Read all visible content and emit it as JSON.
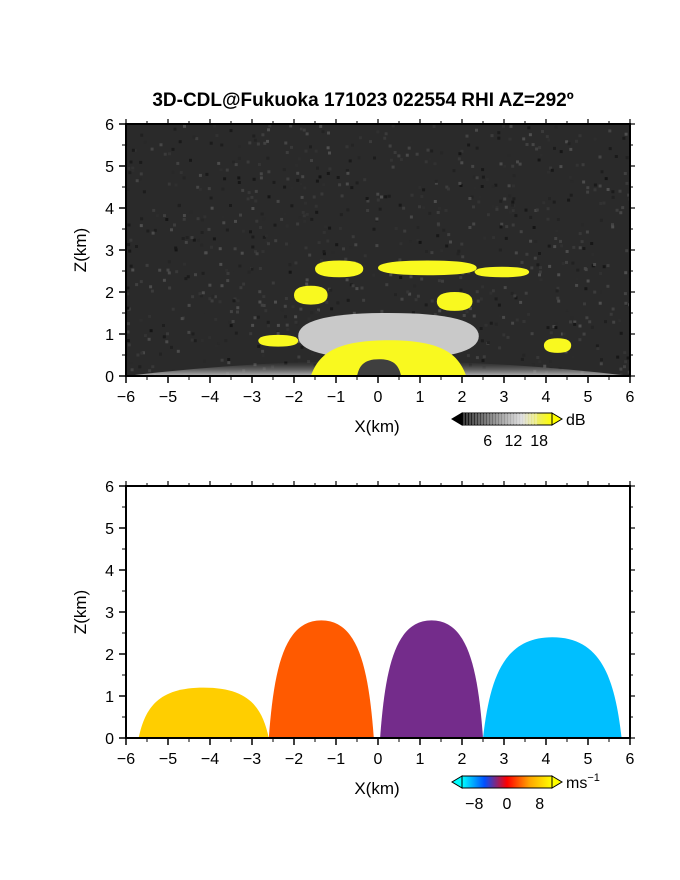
{
  "chart_data": [
    {
      "type": "heatmap",
      "title": "3D-CDL@Fukuoka 171023 022554 RHI AZ=292º",
      "xlabel": "X(km)",
      "ylabel": "Z(km)",
      "xlim": [
        -6,
        6
      ],
      "ylim": [
        0,
        6
      ],
      "xticks": [
        -6,
        -5,
        -4,
        -3,
        -2,
        -1,
        0,
        1,
        2,
        3,
        4,
        5,
        6
      ],
      "yticks": [
        0,
        1,
        2,
        3,
        4,
        5,
        6
      ],
      "grid": false,
      "colorbar": {
        "unit": "dB",
        "ticks": [
          6,
          12,
          18
        ],
        "range": [
          0,
          21
        ],
        "colors": [
          "#000000",
          "#6e6e6e",
          "#d8d8d8",
          "#ffff00"
        ]
      },
      "regions": [
        {
          "x": [
            -0.5,
            0.55
          ],
          "z": [
            0.0,
            0.4
          ],
          "value": 4
        },
        {
          "x": [
            -1.6,
            2.1
          ],
          "z": [
            0.0,
            0.85
          ],
          "value": 20
        },
        {
          "x": [
            -2.85,
            -1.9
          ],
          "z": [
            0.7,
            0.98
          ],
          "value": 20
        },
        {
          "x": [
            -1.5,
            -0.35
          ],
          "z": [
            2.35,
            2.75
          ],
          "value": 20
        },
        {
          "x": [
            0.0,
            2.35
          ],
          "z": [
            2.4,
            2.75
          ],
          "value": 20
        },
        {
          "x": [
            2.3,
            3.6
          ],
          "z": [
            2.35,
            2.6
          ],
          "value": 20
        },
        {
          "x": [
            -2.0,
            -1.2
          ],
          "z": [
            1.7,
            2.15
          ],
          "value": 20
        },
        {
          "x": [
            1.4,
            2.25
          ],
          "z": [
            1.55,
            2.0
          ],
          "value": 20
        },
        {
          "x": [
            3.95,
            4.6
          ],
          "z": [
            0.55,
            0.9
          ],
          "value": 20
        },
        {
          "x": [
            -1.9,
            2.4
          ],
          "z": [
            0.4,
            1.5
          ],
          "value": 13
        },
        {
          "x": [
            -6.0,
            6.0
          ],
          "z": [
            0.0,
            0.45
          ],
          "value": 11
        }
      ]
    },
    {
      "type": "heatmap",
      "xlabel": "X(km)",
      "ylabel": "Z(km)",
      "xlim": [
        -6,
        6
      ],
      "ylim": [
        0,
        6
      ],
      "xticks": [
        -6,
        -5,
        -4,
        -3,
        -2,
        -1,
        0,
        1,
        2,
        3,
        4,
        5,
        6
      ],
      "yticks": [
        0,
        1,
        2,
        3,
        4,
        5,
        6
      ],
      "grid": false,
      "colorbar": {
        "unit": "ms",
        "unit_exponent": "−1",
        "tick_labels": [
          "−8",
          "0",
          "8"
        ],
        "range": [
          -11,
          11
        ],
        "colors": [
          "#00ffff",
          "#0050ff",
          "#ff0000",
          "#ffa500",
          "#ffff00"
        ]
      },
      "regions": [
        {
          "x": [
            -5.7,
            -2.6
          ],
          "z": [
            0.0,
            1.2
          ],
          "value": 8
        },
        {
          "x": [
            -2.6,
            -0.1
          ],
          "z": [
            0.0,
            2.8
          ],
          "value": 3
        },
        {
          "x": [
            0.05,
            2.5
          ],
          "z": [
            0.0,
            2.8
          ],
          "value": -3
        },
        {
          "x": [
            2.5,
            5.8
          ],
          "z": [
            0.0,
            2.4
          ],
          "value": -9
        }
      ]
    }
  ]
}
